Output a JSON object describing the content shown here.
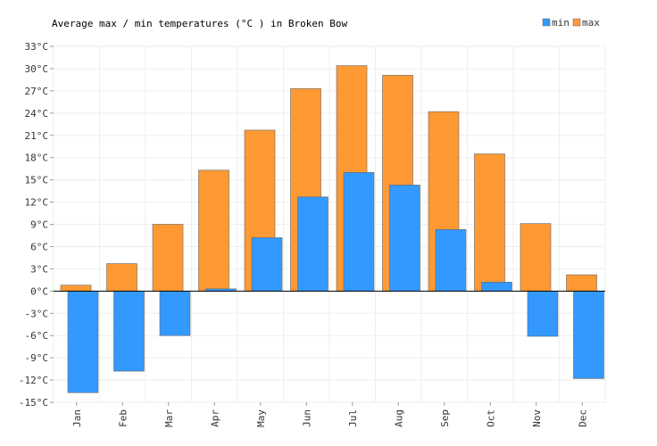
{
  "chart_data": {
    "type": "bar",
    "title": "Average max / min temperatures (°C ) in Broken Bow",
    "xlabel": "",
    "ylabel": "",
    "categories": [
      "Jan",
      "Feb",
      "Mar",
      "Apr",
      "May",
      "Jun",
      "Jul",
      "Aug",
      "Sep",
      "Oct",
      "Nov",
      "Dec"
    ],
    "series": [
      {
        "name": "min",
        "color": "#3399ff",
        "values": [
          -13.7,
          -10.8,
          -6.0,
          0.3,
          7.2,
          12.7,
          16.0,
          14.3,
          8.3,
          1.2,
          -6.1,
          -11.8
        ]
      },
      {
        "name": "max",
        "color": "#ff9933",
        "values": [
          0.8,
          3.7,
          9.0,
          16.3,
          21.7,
          27.3,
          30.4,
          29.1,
          24.2,
          18.5,
          9.1,
          2.2
        ]
      }
    ],
    "ylim": [
      -15,
      33
    ],
    "yticks": [
      -15,
      -12,
      -9,
      -6,
      -3,
      0,
      3,
      6,
      9,
      12,
      15,
      18,
      21,
      24,
      27,
      30,
      33
    ],
    "tick_suffix": "°C",
    "grid": true,
    "legend": "top-right"
  }
}
